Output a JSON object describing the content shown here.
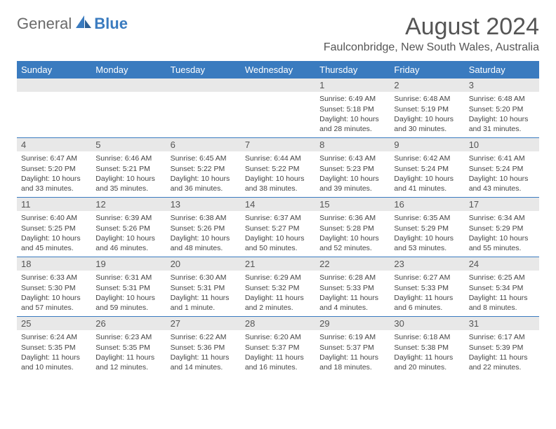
{
  "logo": {
    "part_a": "General",
    "part_b": "Blue"
  },
  "title": "August 2024",
  "location": "Faulconbridge, New South Wales, Australia",
  "colors": {
    "header_bar": "#3a7bbf",
    "daynum_bg": "#e8e8e8",
    "week_divider": "#3a7bbf",
    "text": "#444444",
    "title_text": "#555555"
  },
  "weekdays": [
    "Sunday",
    "Monday",
    "Tuesday",
    "Wednesday",
    "Thursday",
    "Friday",
    "Saturday"
  ],
  "weeks": [
    [
      null,
      null,
      null,
      null,
      {
        "n": "1",
        "sunrise": "6:49 AM",
        "sunset": "5:18 PM",
        "daylight": "10 hours and 28 minutes."
      },
      {
        "n": "2",
        "sunrise": "6:48 AM",
        "sunset": "5:19 PM",
        "daylight": "10 hours and 30 minutes."
      },
      {
        "n": "3",
        "sunrise": "6:48 AM",
        "sunset": "5:20 PM",
        "daylight": "10 hours and 31 minutes."
      }
    ],
    [
      {
        "n": "4",
        "sunrise": "6:47 AM",
        "sunset": "5:20 PM",
        "daylight": "10 hours and 33 minutes."
      },
      {
        "n": "5",
        "sunrise": "6:46 AM",
        "sunset": "5:21 PM",
        "daylight": "10 hours and 35 minutes."
      },
      {
        "n": "6",
        "sunrise": "6:45 AM",
        "sunset": "5:22 PM",
        "daylight": "10 hours and 36 minutes."
      },
      {
        "n": "7",
        "sunrise": "6:44 AM",
        "sunset": "5:22 PM",
        "daylight": "10 hours and 38 minutes."
      },
      {
        "n": "8",
        "sunrise": "6:43 AM",
        "sunset": "5:23 PM",
        "daylight": "10 hours and 39 minutes."
      },
      {
        "n": "9",
        "sunrise": "6:42 AM",
        "sunset": "5:24 PM",
        "daylight": "10 hours and 41 minutes."
      },
      {
        "n": "10",
        "sunrise": "6:41 AM",
        "sunset": "5:24 PM",
        "daylight": "10 hours and 43 minutes."
      }
    ],
    [
      {
        "n": "11",
        "sunrise": "6:40 AM",
        "sunset": "5:25 PM",
        "daylight": "10 hours and 45 minutes."
      },
      {
        "n": "12",
        "sunrise": "6:39 AM",
        "sunset": "5:26 PM",
        "daylight": "10 hours and 46 minutes."
      },
      {
        "n": "13",
        "sunrise": "6:38 AM",
        "sunset": "5:26 PM",
        "daylight": "10 hours and 48 minutes."
      },
      {
        "n": "14",
        "sunrise": "6:37 AM",
        "sunset": "5:27 PM",
        "daylight": "10 hours and 50 minutes."
      },
      {
        "n": "15",
        "sunrise": "6:36 AM",
        "sunset": "5:28 PM",
        "daylight": "10 hours and 52 minutes."
      },
      {
        "n": "16",
        "sunrise": "6:35 AM",
        "sunset": "5:29 PM",
        "daylight": "10 hours and 53 minutes."
      },
      {
        "n": "17",
        "sunrise": "6:34 AM",
        "sunset": "5:29 PM",
        "daylight": "10 hours and 55 minutes."
      }
    ],
    [
      {
        "n": "18",
        "sunrise": "6:33 AM",
        "sunset": "5:30 PM",
        "daylight": "10 hours and 57 minutes."
      },
      {
        "n": "19",
        "sunrise": "6:31 AM",
        "sunset": "5:31 PM",
        "daylight": "10 hours and 59 minutes."
      },
      {
        "n": "20",
        "sunrise": "6:30 AM",
        "sunset": "5:31 PM",
        "daylight": "11 hours and 1 minute."
      },
      {
        "n": "21",
        "sunrise": "6:29 AM",
        "sunset": "5:32 PM",
        "daylight": "11 hours and 2 minutes."
      },
      {
        "n": "22",
        "sunrise": "6:28 AM",
        "sunset": "5:33 PM",
        "daylight": "11 hours and 4 minutes."
      },
      {
        "n": "23",
        "sunrise": "6:27 AM",
        "sunset": "5:33 PM",
        "daylight": "11 hours and 6 minutes."
      },
      {
        "n": "24",
        "sunrise": "6:25 AM",
        "sunset": "5:34 PM",
        "daylight": "11 hours and 8 minutes."
      }
    ],
    [
      {
        "n": "25",
        "sunrise": "6:24 AM",
        "sunset": "5:35 PM",
        "daylight": "11 hours and 10 minutes."
      },
      {
        "n": "26",
        "sunrise": "6:23 AM",
        "sunset": "5:35 PM",
        "daylight": "11 hours and 12 minutes."
      },
      {
        "n": "27",
        "sunrise": "6:22 AM",
        "sunset": "5:36 PM",
        "daylight": "11 hours and 14 minutes."
      },
      {
        "n": "28",
        "sunrise": "6:20 AM",
        "sunset": "5:37 PM",
        "daylight": "11 hours and 16 minutes."
      },
      {
        "n": "29",
        "sunrise": "6:19 AM",
        "sunset": "5:37 PM",
        "daylight": "11 hours and 18 minutes."
      },
      {
        "n": "30",
        "sunrise": "6:18 AM",
        "sunset": "5:38 PM",
        "daylight": "11 hours and 20 minutes."
      },
      {
        "n": "31",
        "sunrise": "6:17 AM",
        "sunset": "5:39 PM",
        "daylight": "11 hours and 22 minutes."
      }
    ]
  ],
  "labels": {
    "sunrise": "Sunrise:",
    "sunset": "Sunset:",
    "daylight": "Daylight:"
  }
}
